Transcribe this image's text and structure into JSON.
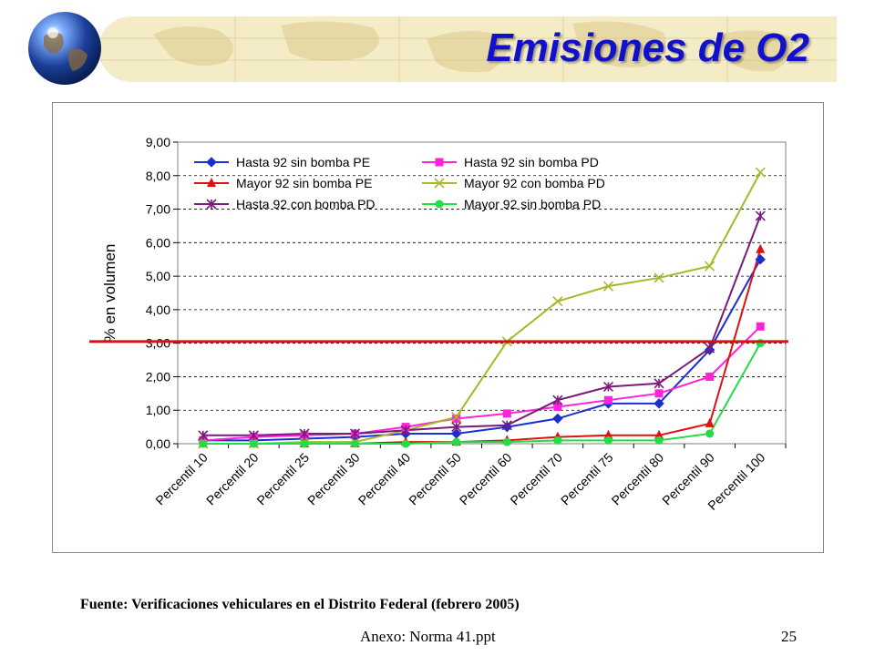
{
  "slide": {
    "title": "Emisiones de O2",
    "source": "Fuente: Verificaciones vehiculares en el Distrito Federal (febrero 2005)",
    "footer_left": "Anexo: Norma 41.ppt",
    "page_number": "25"
  },
  "chart_data": {
    "type": "line",
    "title": "",
    "xlabel": "",
    "ylabel": "% en volumen",
    "ylim": [
      0,
      9
    ],
    "yticks": [
      "0,00",
      "1,00",
      "2,00",
      "3,00",
      "4,00",
      "5,00",
      "6,00",
      "7,00",
      "8,00",
      "9,00"
    ],
    "grid": "horizontal dashed",
    "legend_position": "top-left inside plot, two columns",
    "categories": [
      "Percentil 10",
      "Percentil 20",
      "Percentil 25",
      "Percentil 30",
      "Percentil 40",
      "Percentil 50",
      "Percentil 60",
      "Percentil 70",
      "Percentil 75",
      "Percentil 80",
      "Percentil 90",
      "Percentil 100"
    ],
    "threshold_line": {
      "value": 3.05,
      "color": "#dd1111"
    },
    "series": [
      {
        "name": "Hasta 92 sin bomba PE",
        "color": "#1a2fd0",
        "marker": "diamond",
        "values": [
          0.1,
          0.1,
          0.15,
          0.2,
          0.3,
          0.3,
          0.5,
          0.75,
          1.2,
          1.2,
          2.8,
          5.5
        ]
      },
      {
        "name": "Hasta 92 sin bomba PD",
        "color": "#ff22dd",
        "marker": "square",
        "values": [
          0.1,
          0.2,
          0.25,
          0.3,
          0.5,
          0.75,
          0.9,
          1.1,
          1.3,
          1.5,
          2.0,
          3.5
        ]
      },
      {
        "name": "Mayor 92 sin bomba PE",
        "color": "#e01010",
        "marker": "triangle",
        "values": [
          0.0,
          0.0,
          0.0,
          0.0,
          0.05,
          0.05,
          0.1,
          0.2,
          0.25,
          0.25,
          0.6,
          5.8
        ]
      },
      {
        "name": "Mayor 92 con bomba PD",
        "color": "#a8b82a",
        "marker": "x",
        "values": [
          0.0,
          0.0,
          0.05,
          0.05,
          0.4,
          0.8,
          3.05,
          4.25,
          4.7,
          4.95,
          5.3,
          8.1
        ]
      },
      {
        "name": "Hasta 92 con bomba PD",
        "color": "#7a1a7a",
        "marker": "star",
        "values": [
          0.25,
          0.25,
          0.3,
          0.3,
          0.4,
          0.5,
          0.55,
          1.3,
          1.7,
          1.8,
          2.85,
          6.8
        ]
      },
      {
        "name": "Mayor 92 sin bomba PD",
        "color": "#22dd44",
        "marker": "circle",
        "values": [
          0.0,
          0.0,
          0.0,
          0.0,
          0.0,
          0.05,
          0.05,
          0.1,
          0.1,
          0.1,
          0.3,
          3.0
        ]
      }
    ]
  }
}
